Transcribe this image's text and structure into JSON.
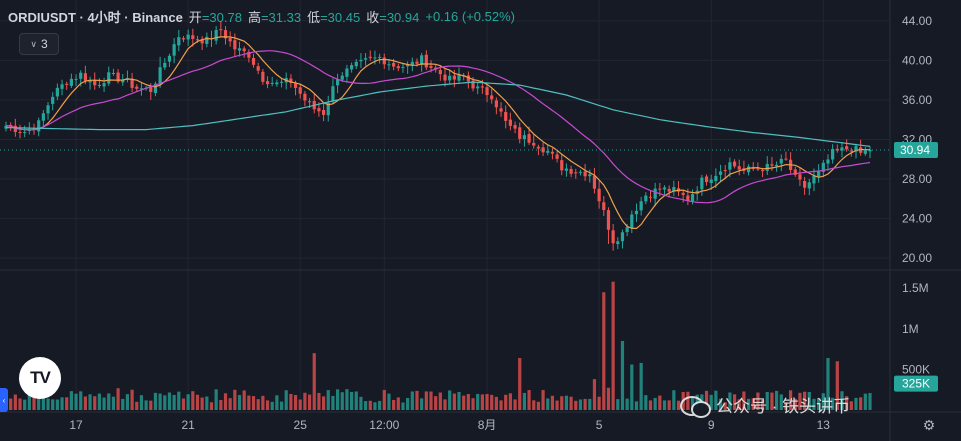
{
  "header": {
    "title": "ORDIUSDT · 4小时 · Binance",
    "open_label": "开",
    "open": "=30.78",
    "high_label": "高",
    "high": "=31.33",
    "low_label": "低",
    "low": "=30.45",
    "close_label": "收",
    "close": "=30.94",
    "change": "+0.16 (+0.52%)"
  },
  "indicators_button": {
    "label": "3"
  },
  "logo_text": "TV",
  "watermark": {
    "text": "公众号 · 铁头讲币"
  },
  "colors": {
    "background": "#161a25",
    "grid": "#232632",
    "up": "#26a69a",
    "down": "#ef5350",
    "ma_fast": "#f0a04b",
    "ma_mid": "#c74bd1",
    "ma_slow": "#4fbfc0",
    "last_price": "#26a69a"
  },
  "chart_data": [
    {
      "type": "candlestick",
      "symbol": "ORDIUSDT",
      "interval": "4小时",
      "exchange": "Binance",
      "y_ticks": [
        "44.00",
        "40.00",
        "36.00",
        "32.00",
        "28.00",
        "24.00",
        "20.00"
      ],
      "ylim": [
        19.0,
        45.5
      ],
      "last_price": "30.94",
      "x_ticks": [
        {
          "label": "17",
          "index": 15
        },
        {
          "label": "21",
          "index": 39
        },
        {
          "label": "25",
          "index": 63
        },
        {
          "label": "12:00",
          "index": 81
        },
        {
          "label": "8月",
          "index": 103
        },
        {
          "label": "5",
          "index": 127
        },
        {
          "label": "9",
          "index": 151
        },
        {
          "label": "13",
          "index": 175
        }
      ],
      "anchors_close": [
        [
          0,
          33.4
        ],
        [
          4,
          32.8
        ],
        [
          7,
          33.6
        ],
        [
          10,
          36.5
        ],
        [
          13,
          37.9
        ],
        [
          16,
          38.6
        ],
        [
          19,
          37.5
        ],
        [
          22,
          38.4
        ],
        [
          25,
          38.1
        ],
        [
          28,
          37.2
        ],
        [
          31,
          37.0
        ],
        [
          34,
          39.8
        ],
        [
          37,
          42.5
        ],
        [
          40,
          42.3
        ],
        [
          43,
          42.0
        ],
        [
          46,
          43.1
        ],
        [
          49,
          41.2
        ],
        [
          52,
          40.6
        ],
        [
          55,
          38.2
        ],
        [
          58,
          37.6
        ],
        [
          61,
          37.9
        ],
        [
          64,
          36.0
        ],
        [
          66,
          35.1
        ],
        [
          68,
          34.7
        ],
        [
          71,
          38.4
        ],
        [
          74,
          39.2
        ],
        [
          77,
          39.9
        ],
        [
          80,
          40.3
        ],
        [
          83,
          39.5
        ],
        [
          86,
          39.4
        ],
        [
          89,
          40.1
        ],
        [
          92,
          39.0
        ],
        [
          95,
          38.0
        ],
        [
          98,
          38.3
        ],
        [
          101,
          37.1
        ],
        [
          104,
          36.5
        ],
        [
          107,
          33.7
        ],
        [
          110,
          32.3
        ],
        [
          113,
          31.8
        ],
        [
          116,
          30.8
        ],
        [
          119,
          29.2
        ],
        [
          122,
          28.8
        ],
        [
          125,
          28.6
        ],
        [
          128,
          24.6
        ],
        [
          130,
          21.8
        ],
        [
          132,
          22.5
        ],
        [
          134,
          24.5
        ],
        [
          137,
          26.4
        ],
        [
          140,
          27.0
        ],
        [
          143,
          26.8
        ],
        [
          146,
          26.0
        ],
        [
          149,
          27.8
        ],
        [
          152,
          28.6
        ],
        [
          155,
          29.6
        ],
        [
          158,
          28.8
        ],
        [
          161,
          29.1
        ],
        [
          164,
          29.2
        ],
        [
          167,
          29.9
        ],
        [
          169,
          28.0
        ],
        [
          171,
          27.2
        ],
        [
          174,
          28.6
        ],
        [
          177,
          30.6
        ],
        [
          179,
          30.9
        ],
        [
          181,
          31.2
        ],
        [
          183,
          30.6
        ],
        [
          185,
          30.94
        ]
      ],
      "ma_slow": [
        [
          0,
          33.2
        ],
        [
          10,
          33.1
        ],
        [
          20,
          33.0
        ],
        [
          30,
          33.0
        ],
        [
          40,
          33.4
        ],
        [
          50,
          34.1
        ],
        [
          60,
          34.8
        ],
        [
          70,
          35.9
        ],
        [
          80,
          36.8
        ],
        [
          90,
          37.4
        ],
        [
          100,
          37.8
        ],
        [
          110,
          37.5
        ],
        [
          120,
          36.5
        ],
        [
          130,
          35.0
        ],
        [
          140,
          34.0
        ],
        [
          150,
          33.3
        ],
        [
          160,
          32.7
        ],
        [
          170,
          32.2
        ],
        [
          180,
          31.6
        ],
        [
          185,
          31.3
        ]
      ],
      "volume": {
        "y_ticks": [
          "1.5M",
          "1M",
          "500K"
        ],
        "ylim": [
          0,
          1650000
        ],
        "last_label": "325K",
        "spikes": [
          [
            66,
            700000
          ],
          [
            110,
            640000
          ],
          [
            126,
            380000
          ],
          [
            128,
            1450000
          ],
          [
            130,
            1580000
          ],
          [
            132,
            850000
          ],
          [
            134,
            560000
          ],
          [
            136,
            580000
          ],
          [
            176,
            640000
          ],
          [
            178,
            600000
          ]
        ]
      }
    }
  ]
}
